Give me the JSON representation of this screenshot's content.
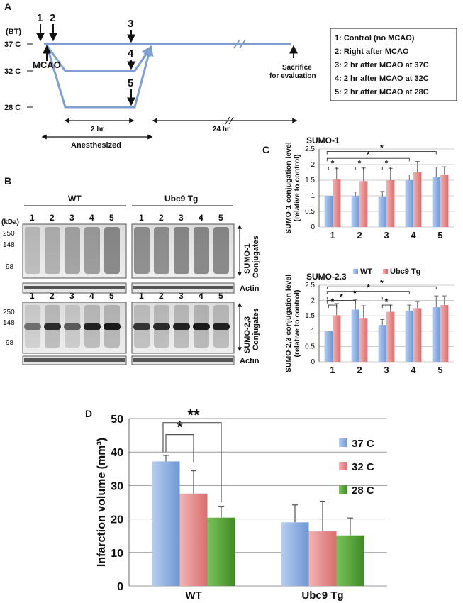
{
  "panel_a": {
    "label": "A",
    "bt_label": "(BT)",
    "temp_labels": [
      "37 C",
      "32 C",
      "28 C"
    ],
    "markers": [
      "1",
      "2",
      "3",
      "4",
      "5"
    ],
    "mcao_label": "MCAO",
    "sacrifice_line1": "Sacrifice",
    "sacrifice_line2": "for evaluation",
    "duration_2hr": "2 hr",
    "duration_24hr": "24 hr",
    "anesthesized": "Anesthesized",
    "legend": [
      "1: Control (no MCAO)",
      "2: Right after MCAO",
      "3: 2 hr after MCAO at 37C",
      "4: 2 hr after MCAO at 32C",
      "5: 2 hr after MCAO at 28C"
    ]
  },
  "panel_b": {
    "label": "B",
    "group_wt": "WT",
    "group_tg": "Ubc9 Tg",
    "kda": "(kDa)",
    "lanes": [
      "1",
      "2",
      "3",
      "4",
      "5"
    ],
    "mw_markers": [
      "250",
      "148",
      "98"
    ],
    "sumo1_line1": "SUMO-1",
    "sumo1_line2": "Conjugates",
    "sumo23_line1": "SUMO-2,3",
    "sumo23_line2": "Conjugates",
    "actin": "Actin"
  },
  "panel_c": {
    "label": "C"
  },
  "panel_d": {
    "label": "D"
  },
  "colors": {
    "wt": "#7fa6dc",
    "tg": "#e07f7f",
    "c37": "#7fa6dc",
    "c32": "#e07f7f",
    "c28": "#5aa538",
    "arrow": "#7f9fd0"
  },
  "chart_data": [
    {
      "type": "bar",
      "title": "SUMO-1",
      "ylabel_line1": "SUMO-1 conjugation level",
      "ylabel_line2": "(relative to control)",
      "categories": [
        "1",
        "2",
        "3",
        "4",
        "5"
      ],
      "series": [
        {
          "name": "WT",
          "values": [
            1.0,
            1.0,
            0.97,
            1.5,
            1.6
          ],
          "errors": [
            0.0,
            0.12,
            0.17,
            0.17,
            0.32
          ]
        },
        {
          "name": "Ubc9 Tg",
          "values": [
            1.53,
            1.47,
            1.5,
            1.75,
            1.68
          ],
          "errors": [
            0.35,
            0.42,
            0.38,
            0.35,
            0.25
          ]
        }
      ],
      "ylim": [
        0,
        2.5
      ],
      "yticks": [
        "0",
        "0.5",
        "1",
        "1.5",
        "2",
        "2.5"
      ],
      "significance": [
        "*",
        "*",
        "*",
        "*",
        "*"
      ]
    },
    {
      "type": "bar",
      "title": "SUMO-2.3",
      "ylabel_line1": "SUMO-2,3 conjugation level",
      "ylabel_line2": "(relative to control)",
      "categories": [
        "1",
        "2",
        "3",
        "4",
        "5"
      ],
      "series": [
        {
          "name": "WT",
          "values": [
            1.0,
            1.7,
            1.2,
            1.67,
            1.78
          ],
          "errors": [
            0.0,
            0.33,
            0.18,
            0.18,
            0.37
          ]
        },
        {
          "name": "Ubc9 Tg",
          "values": [
            1.52,
            1.43,
            1.63,
            1.75,
            1.85
          ],
          "errors": [
            0.38,
            0.4,
            0.22,
            0.22,
            0.3
          ]
        }
      ],
      "ylim": [
        0,
        2.5
      ],
      "yticks": [
        "0",
        "0.5",
        "1",
        "1.5",
        "2",
        "2.5"
      ],
      "significance": [
        "*",
        "*",
        "*",
        "*",
        "*",
        "*"
      ]
    },
    {
      "type": "bar",
      "title": "",
      "ylabel": "Infarction volume (mm³)",
      "categories": [
        "WT",
        "Ubc9 Tg"
      ],
      "series": [
        {
          "name": "37 C",
          "values": [
            37.2,
            19.0
          ],
          "errors": [
            1.8,
            5.2
          ]
        },
        {
          "name": "32 C",
          "values": [
            27.6,
            16.3
          ],
          "errors": [
            6.8,
            9.0
          ]
        },
        {
          "name": "28 C",
          "values": [
            20.4,
            15.1
          ],
          "errors": [
            3.4,
            5.2
          ]
        }
      ],
      "ylim": [
        0,
        50
      ],
      "yticks": [
        "0",
        "10",
        "20",
        "30",
        "40",
        "50"
      ],
      "significance": [
        "*",
        "**"
      ]
    }
  ]
}
